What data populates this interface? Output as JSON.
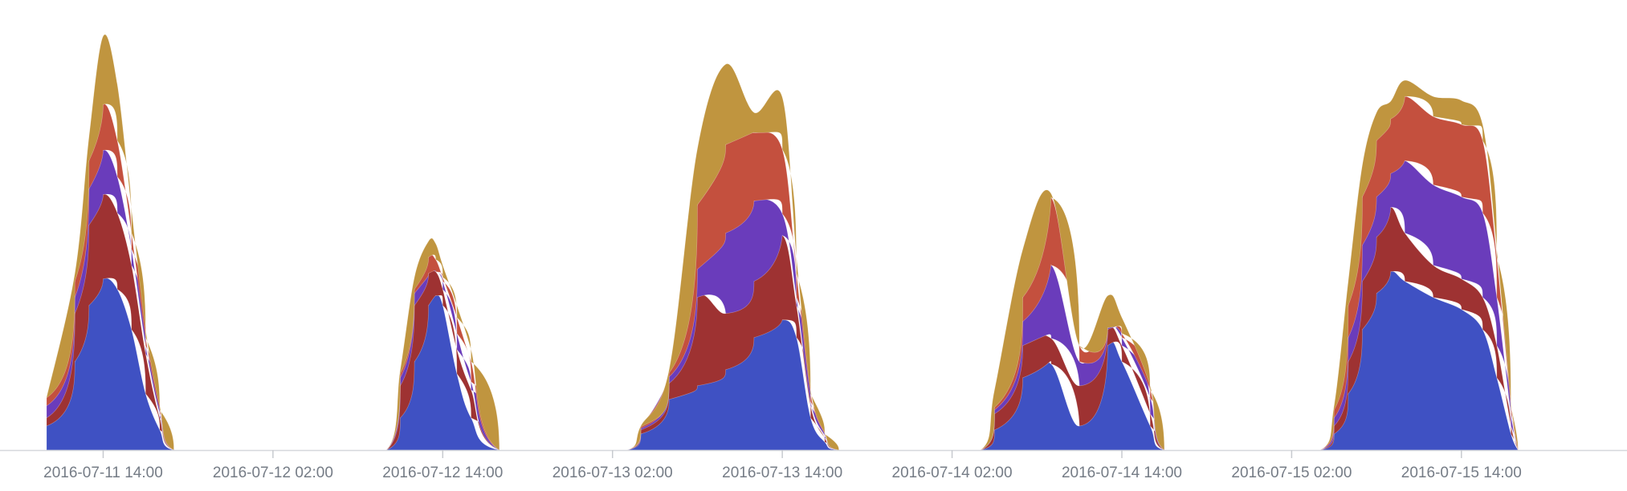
{
  "chart_data": {
    "type": "area",
    "stacked": true,
    "title": "",
    "xlabel": "",
    "ylabel": "",
    "x_ticks": [
      "2016-07-11 14:00",
      "2016-07-12 02:00",
      "2016-07-12 14:00",
      "2016-07-13 02:00",
      "2016-07-13 14:00",
      "2016-07-14 02:00",
      "2016-07-14 14:00",
      "2016-07-15 02:00",
      "2016-07-15 14:00"
    ],
    "xlim": [
      "2016-07-11 10:00",
      "2016-07-16 00:00"
    ],
    "ylim": [
      0,
      540
    ],
    "y_axis_visible": false,
    "grid": false,
    "legend": "none",
    "series": [
      {
        "color": "#3f51c3",
        "points": [
          [
            "2016-07-11 10:00",
            30
          ],
          [
            "2016-07-11 12:00",
            110
          ],
          [
            "2016-07-11 13:00",
            180
          ],
          [
            "2016-07-11 14:00",
            213
          ],
          [
            "2016-07-11 15:00",
            200
          ],
          [
            "2016-07-11 16:00",
            150
          ],
          [
            "2016-07-11 17:00",
            70
          ],
          [
            "2016-07-11 18:00",
            25
          ],
          [
            "2016-07-11 19:00",
            0
          ],
          [
            "2016-07-12 10:00",
            0
          ],
          [
            "2016-07-12 11:00",
            40
          ],
          [
            "2016-07-12 12:00",
            110
          ],
          [
            "2016-07-12 13:00",
            180
          ],
          [
            "2016-07-12 13:30",
            192
          ],
          [
            "2016-07-12 14:00",
            180
          ],
          [
            "2016-07-12 15:00",
            95
          ],
          [
            "2016-07-12 16:00",
            40
          ],
          [
            "2016-07-12 18:00",
            0
          ],
          [
            "2016-07-13 03:00",
            0
          ],
          [
            "2016-07-13 04:00",
            20
          ],
          [
            "2016-07-13 06:00",
            63
          ],
          [
            "2016-07-13 08:00",
            80
          ],
          [
            "2016-07-13 10:00",
            100
          ],
          [
            "2016-07-13 12:00",
            140
          ],
          [
            "2016-07-13 14:00",
            162
          ],
          [
            "2016-07-13 15:00",
            140
          ],
          [
            "2016-07-13 16:00",
            40
          ],
          [
            "2016-07-13 17:00",
            10
          ],
          [
            "2016-07-13 18:00",
            0
          ],
          [
            "2016-07-14 04:00",
            0
          ],
          [
            "2016-07-14 05:00",
            25
          ],
          [
            "2016-07-14 07:00",
            90
          ],
          [
            "2016-07-14 09:00",
            107
          ],
          [
            "2016-07-14 11:00",
            30
          ],
          [
            "2016-07-14 13:00",
            130
          ],
          [
            "2016-07-14 14:00",
            110
          ],
          [
            "2016-07-14 16:00",
            30
          ],
          [
            "2016-07-14 17:00",
            0
          ],
          [
            "2016-07-15 04:00",
            0
          ],
          [
            "2016-07-15 05:00",
            20
          ],
          [
            "2016-07-15 06:00",
            70
          ],
          [
            "2016-07-15 07:00",
            150
          ],
          [
            "2016-07-15 08:00",
            195
          ],
          [
            "2016-07-15 09:00",
            222
          ],
          [
            "2016-07-15 10:00",
            210
          ],
          [
            "2016-07-15 12:00",
            190
          ],
          [
            "2016-07-15 14:00",
            175
          ],
          [
            "2016-07-15 15:30",
            150
          ],
          [
            "2016-07-15 16:30",
            90
          ],
          [
            "2016-07-15 17:30",
            20
          ],
          [
            "2016-07-15 18:00",
            0
          ]
        ]
      },
      {
        "color": "#9e3232",
        "points": [
          [
            "2016-07-11 10:00",
            10
          ],
          [
            "2016-07-11 12:00",
            60
          ],
          [
            "2016-07-11 13:00",
            100
          ],
          [
            "2016-07-11 14:00",
            105
          ],
          [
            "2016-07-11 15:00",
            95
          ],
          [
            "2016-07-11 16:00",
            80
          ],
          [
            "2016-07-11 17:00",
            50
          ],
          [
            "2016-07-11 18:00",
            15
          ],
          [
            "2016-07-11 19:00",
            0
          ],
          [
            "2016-07-12 10:00",
            0
          ],
          [
            "2016-07-12 11:00",
            40
          ],
          [
            "2016-07-12 12:00",
            70
          ],
          [
            "2016-07-12 13:00",
            40
          ],
          [
            "2016-07-12 13:30",
            30
          ],
          [
            "2016-07-12 14:00",
            20
          ],
          [
            "2016-07-12 15:00",
            30
          ],
          [
            "2016-07-12 16:00",
            35
          ],
          [
            "2016-07-12 18:00",
            0
          ],
          [
            "2016-07-13 03:00",
            0
          ],
          [
            "2016-07-13 04:00",
            5
          ],
          [
            "2016-07-13 06:00",
            20
          ],
          [
            "2016-07-13 08:00",
            110
          ],
          [
            "2016-07-13 10:00",
            70
          ],
          [
            "2016-07-13 12:00",
            70
          ],
          [
            "2016-07-13 14:00",
            105
          ],
          [
            "2016-07-13 15:00",
            40
          ],
          [
            "2016-07-13 16:00",
            15
          ],
          [
            "2016-07-13 17:00",
            5
          ],
          [
            "2016-07-13 18:00",
            0
          ],
          [
            "2016-07-14 04:00",
            0
          ],
          [
            "2016-07-14 05:00",
            20
          ],
          [
            "2016-07-14 07:00",
            40
          ],
          [
            "2016-07-14 09:00",
            32
          ],
          [
            "2016-07-14 11:00",
            50
          ],
          [
            "2016-07-14 13:00",
            20
          ],
          [
            "2016-07-14 14:00",
            20
          ],
          [
            "2016-07-14 16:00",
            15
          ],
          [
            "2016-07-14 17:00",
            0
          ],
          [
            "2016-07-15 04:00",
            0
          ],
          [
            "2016-07-15 05:00",
            10
          ],
          [
            "2016-07-15 06:00",
            40
          ],
          [
            "2016-07-15 07:00",
            60
          ],
          [
            "2016-07-15 08:00",
            70
          ],
          [
            "2016-07-15 09:00",
            80
          ],
          [
            "2016-07-15 10:00",
            60
          ],
          [
            "2016-07-15 12:00",
            40
          ],
          [
            "2016-07-15 14:00",
            38
          ],
          [
            "2016-07-15 15:30",
            40
          ],
          [
            "2016-07-15 16:30",
            40
          ],
          [
            "2016-07-15 17:30",
            10
          ],
          [
            "2016-07-15 18:00",
            0
          ]
        ]
      },
      {
        "color": "#6a3cbb",
        "points": [
          [
            "2016-07-11 10:00",
            15
          ],
          [
            "2016-07-11 12:00",
            20
          ],
          [
            "2016-07-11 13:00",
            45
          ],
          [
            "2016-07-11 14:00",
            55
          ],
          [
            "2016-07-11 15:00",
            45
          ],
          [
            "2016-07-11 16:00",
            20
          ],
          [
            "2016-07-11 17:00",
            10
          ],
          [
            "2016-07-11 18:00",
            5
          ],
          [
            "2016-07-11 19:00",
            0
          ],
          [
            "2016-07-12 10:00",
            0
          ],
          [
            "2016-07-12 11:00",
            10
          ],
          [
            "2016-07-12 12:00",
            15
          ],
          [
            "2016-07-12 13:00",
            0
          ],
          [
            "2016-07-12 13:30",
            0
          ],
          [
            "2016-07-12 14:00",
            10
          ],
          [
            "2016-07-12 15:00",
            20
          ],
          [
            "2016-07-12 16:00",
            10
          ],
          [
            "2016-07-12 18:00",
            0
          ],
          [
            "2016-07-13 03:00",
            0
          ],
          [
            "2016-07-13 04:00",
            2
          ],
          [
            "2016-07-13 06:00",
            8
          ],
          [
            "2016-07-13 08:00",
            35
          ],
          [
            "2016-07-13 10:00",
            100
          ],
          [
            "2016-07-13 12:00",
            100
          ],
          [
            "2016-07-13 14:00",
            27
          ],
          [
            "2016-07-13 15:00",
            10
          ],
          [
            "2016-07-13 16:00",
            5
          ],
          [
            "2016-07-13 17:00",
            3
          ],
          [
            "2016-07-13 18:00",
            0
          ],
          [
            "2016-07-14 04:00",
            0
          ],
          [
            "2016-07-14 05:00",
            5
          ],
          [
            "2016-07-14 07:00",
            30
          ],
          [
            "2016-07-14 09:00",
            91
          ],
          [
            "2016-07-14 11:00",
            30
          ],
          [
            "2016-07-14 13:00",
            2
          ],
          [
            "2016-07-14 14:00",
            10
          ],
          [
            "2016-07-14 16:00",
            20
          ],
          [
            "2016-07-14 17:00",
            0
          ],
          [
            "2016-07-15 04:00",
            0
          ],
          [
            "2016-07-15 05:00",
            10
          ],
          [
            "2016-07-15 06:00",
            30
          ],
          [
            "2016-07-15 07:00",
            45
          ],
          [
            "2016-07-15 08:00",
            50
          ],
          [
            "2016-07-15 09:00",
            42
          ],
          [
            "2016-07-15 10:00",
            90
          ],
          [
            "2016-07-15 12:00",
            100
          ],
          [
            "2016-07-15 14:00",
            102
          ],
          [
            "2016-07-15 15:30",
            105
          ],
          [
            "2016-07-15 16:30",
            60
          ],
          [
            "2016-07-15 17:30",
            15
          ],
          [
            "2016-07-15 18:00",
            0
          ]
        ]
      },
      {
        "color": "#c4503e",
        "points": [
          [
            "2016-07-11 10:00",
            10
          ],
          [
            "2016-07-11 12:00",
            20
          ],
          [
            "2016-07-11 13:00",
            35
          ],
          [
            "2016-07-11 14:00",
            57
          ],
          [
            "2016-07-11 15:00",
            45
          ],
          [
            "2016-07-11 16:00",
            20
          ],
          [
            "2016-07-11 17:00",
            10
          ],
          [
            "2016-07-11 18:00",
            5
          ],
          [
            "2016-07-11 19:00",
            0
          ],
          [
            "2016-07-12 10:00",
            0
          ],
          [
            "2016-07-12 11:00",
            5
          ],
          [
            "2016-07-12 12:00",
            5
          ],
          [
            "2016-07-12 13:00",
            20
          ],
          [
            "2016-07-12 13:30",
            15
          ],
          [
            "2016-07-12 14:00",
            5
          ],
          [
            "2016-07-12 15:00",
            20
          ],
          [
            "2016-07-12 16:00",
            25
          ],
          [
            "2016-07-12 18:00",
            0
          ],
          [
            "2016-07-13 03:00",
            0
          ],
          [
            "2016-07-13 04:00",
            2
          ],
          [
            "2016-07-13 06:00",
            5
          ],
          [
            "2016-07-13 08:00",
            80
          ],
          [
            "2016-07-13 10:00",
            110
          ],
          [
            "2016-07-13 12:00",
            85
          ],
          [
            "2016-07-13 14:00",
            80
          ],
          [
            "2016-07-13 15:00",
            30
          ],
          [
            "2016-07-13 16:00",
            10
          ],
          [
            "2016-07-13 17:00",
            2
          ],
          [
            "2016-07-13 18:00",
            0
          ],
          [
            "2016-07-14 04:00",
            0
          ],
          [
            "2016-07-14 05:00",
            3
          ],
          [
            "2016-07-14 07:00",
            30
          ],
          [
            "2016-07-14 09:00",
            84
          ],
          [
            "2016-07-14 11:00",
            20
          ],
          [
            "2016-07-14 13:00",
            0
          ],
          [
            "2016-07-14 14:00",
            5
          ],
          [
            "2016-07-14 16:00",
            10
          ],
          [
            "2016-07-14 17:00",
            0
          ],
          [
            "2016-07-15 04:00",
            0
          ],
          [
            "2016-07-15 05:00",
            10
          ],
          [
            "2016-07-15 06:00",
            40
          ],
          [
            "2016-07-15 07:00",
            60
          ],
          [
            "2016-07-15 08:00",
            70
          ],
          [
            "2016-07-15 09:00",
            68
          ],
          [
            "2016-07-15 10:00",
            80
          ],
          [
            "2016-07-15 12:00",
            85
          ],
          [
            "2016-07-15 14:00",
            90
          ],
          [
            "2016-07-15 15:30",
            90
          ],
          [
            "2016-07-15 16:30",
            50
          ],
          [
            "2016-07-15 17:30",
            10
          ],
          [
            "2016-07-15 18:00",
            0
          ]
        ]
      },
      {
        "color": "#c0953f",
        "points": [
          [
            "2016-07-11 10:00",
            0
          ],
          [
            "2016-07-11 12:00",
            10
          ],
          [
            "2016-07-11 13:00",
            30
          ],
          [
            "2016-07-11 14:00",
            85
          ],
          [
            "2016-07-11 15:00",
            70
          ],
          [
            "2016-07-11 16:00",
            30
          ],
          [
            "2016-07-11 17:00",
            10
          ],
          [
            "2016-07-11 18:00",
            5
          ],
          [
            "2016-07-11 19:00",
            0
          ],
          [
            "2016-07-12 10:00",
            0
          ],
          [
            "2016-07-12 11:00",
            5
          ],
          [
            "2016-07-12 12:00",
            15
          ],
          [
            "2016-07-12 13:00",
            20
          ],
          [
            "2016-07-12 13:30",
            20
          ],
          [
            "2016-07-12 14:00",
            15
          ],
          [
            "2016-07-12 15:00",
            15
          ],
          [
            "2016-07-12 16:00",
            15
          ],
          [
            "2016-07-12 18:00",
            0
          ],
          [
            "2016-07-13 03:00",
            0
          ],
          [
            "2016-07-13 04:00",
            1
          ],
          [
            "2016-07-13 06:00",
            4
          ],
          [
            "2016-07-13 08:00",
            70
          ],
          [
            "2016-07-13 10:00",
            100
          ],
          [
            "2016-07-13 12:00",
            25
          ],
          [
            "2016-07-13 14:00",
            65
          ],
          [
            "2016-07-13 15:00",
            20
          ],
          [
            "2016-07-13 16:00",
            5
          ],
          [
            "2016-07-13 17:00",
            1
          ],
          [
            "2016-07-13 18:00",
            0
          ],
          [
            "2016-07-14 04:00",
            0
          ],
          [
            "2016-07-14 05:00",
            22
          ],
          [
            "2016-07-14 07:00",
            60
          ],
          [
            "2016-07-14 09:00",
            5
          ],
          [
            "2016-07-14 11:00",
            0
          ],
          [
            "2016-07-14 13:00",
            40
          ],
          [
            "2016-07-14 14:00",
            20
          ],
          [
            "2016-07-14 16:00",
            5
          ],
          [
            "2016-07-14 17:00",
            0
          ],
          [
            "2016-07-15 04:00",
            0
          ],
          [
            "2016-07-15 05:00",
            5
          ],
          [
            "2016-07-15 06:00",
            30
          ],
          [
            "2016-07-15 07:00",
            40
          ],
          [
            "2016-07-15 08:00",
            35
          ],
          [
            "2016-07-15 09:00",
            22
          ],
          [
            "2016-07-15 10:00",
            20
          ],
          [
            "2016-07-15 12:00",
            25
          ],
          [
            "2016-07-15 14:00",
            30
          ],
          [
            "2016-07-15 15:30",
            20
          ],
          [
            "2016-07-15 16:30",
            10
          ],
          [
            "2016-07-15 17:30",
            5
          ],
          [
            "2016-07-15 18:00",
            0
          ]
        ]
      }
    ]
  }
}
